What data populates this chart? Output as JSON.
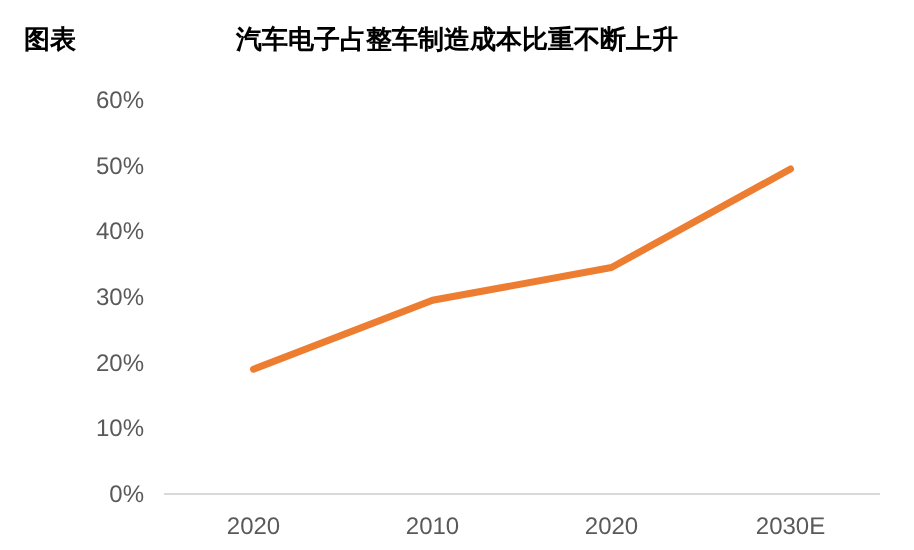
{
  "chart_data": {
    "type": "line",
    "title": "汽车电子占整车制造成本比重不断上升",
    "annotations": [
      "图表"
    ],
    "categories": [
      "2020",
      "2010",
      "2020",
      "2030E"
    ],
    "series": [
      {
        "color": "#ed7d31",
        "values": [
          19,
          29.5,
          34.5,
          49.5
        ]
      }
    ],
    "ylim": [
      0,
      60
    ],
    "yticks": [
      {
        "value": 0,
        "label": "0%"
      },
      {
        "value": 10,
        "label": "10%"
      },
      {
        "value": 20,
        "label": "20%"
      },
      {
        "value": 30,
        "label": "30%"
      },
      {
        "value": 40,
        "label": "40%"
      },
      {
        "value": 50,
        "label": "50%"
      },
      {
        "value": 60,
        "label": "60%"
      }
    ],
    "grid": false,
    "marker": "none",
    "line_style": "solid"
  }
}
